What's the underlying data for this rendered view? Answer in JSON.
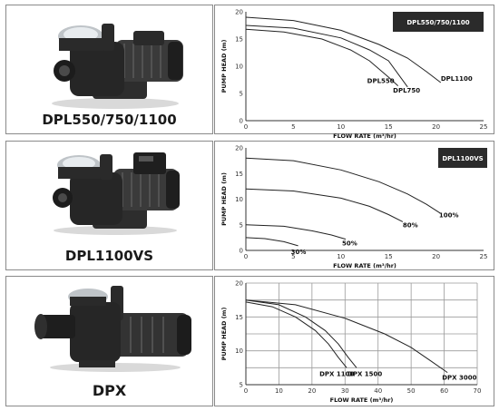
{
  "products": [
    {
      "name": "DPL550/750/1100",
      "image": "pump-dpl-icon"
    },
    {
      "name": "DPL1100VS",
      "image": "pump-dpl-vs-icon"
    },
    {
      "name": "DPX",
      "image": "pump-dpx-icon"
    }
  ],
  "chart_data": [
    {
      "type": "line",
      "badge": "DPL550/750/1100",
      "xlabel": "FLOW RATE (m³/hr)",
      "ylabel": "PUMP HEAD (m)",
      "xlim": [
        0,
        25
      ],
      "ylim": [
        0,
        20
      ],
      "xticks": [
        0,
        5,
        10,
        15,
        20,
        25
      ],
      "yticks": [
        0,
        5,
        10,
        15,
        20
      ],
      "grid": false,
      "series": [
        {
          "name": "DPL550",
          "x": [
            0,
            4,
            8,
            11,
            13,
            15,
            16
          ],
          "y": [
            16.8,
            16.3,
            15.0,
            13.0,
            11.0,
            8.0,
            6.4
          ]
        },
        {
          "name": "DPL750",
          "x": [
            0,
            5,
            10,
            13,
            15,
            17
          ],
          "y": [
            17.5,
            17.0,
            15.2,
            13.0,
            11.0,
            6.2
          ]
        },
        {
          "name": "DPL1100",
          "x": [
            0,
            5,
            10,
            14,
            17,
            19,
            20.5
          ],
          "y": [
            19.0,
            18.4,
            16.6,
            14.0,
            11.5,
            9.0,
            7.0
          ]
        }
      ]
    },
    {
      "type": "line",
      "badge": "DPL1100VS",
      "xlabel": "FLOW RATE (m³/hr)",
      "ylabel": "PUMP HEAD (m)",
      "xlim": [
        0,
        25
      ],
      "ylim": [
        0,
        20
      ],
      "xticks": [
        0,
        5,
        10,
        15,
        20,
        25
      ],
      "yticks": [
        0,
        5,
        10,
        15,
        20
      ],
      "grid": false,
      "series": [
        {
          "name": "100%",
          "x": [
            0,
            5,
            10,
            14,
            17,
            19,
            20.5
          ],
          "y": [
            18.0,
            17.5,
            15.7,
            13.4,
            11.0,
            9.0,
            7.2
          ]
        },
        {
          "name": "80%",
          "x": [
            0,
            5,
            10,
            13,
            15,
            16.5
          ],
          "y": [
            12.0,
            11.6,
            10.2,
            8.6,
            7.0,
            5.6
          ]
        },
        {
          "name": "50%",
          "x": [
            0,
            4,
            7,
            9,
            10.5
          ],
          "y": [
            5.0,
            4.7,
            3.8,
            3.0,
            2.2
          ]
        },
        {
          "name": "30%",
          "x": [
            0,
            2,
            4,
            5.5
          ],
          "y": [
            2.5,
            2.3,
            1.7,
            0.9
          ]
        }
      ]
    },
    {
      "type": "line",
      "badge": "",
      "xlabel": "FLOW RATE (m³/hr)",
      "ylabel": "PUMP HEAD (m)",
      "xlim": [
        0,
        70
      ],
      "ylim": [
        5,
        20
      ],
      "xticks": [
        0,
        10,
        20,
        30,
        40,
        50,
        60,
        70
      ],
      "yticks": [
        5,
        7.5,
        10,
        12.5,
        15,
        17.5,
        20
      ],
      "ytick_labels": [
        "5",
        "",
        "10",
        "",
        "15",
        "",
        "20"
      ],
      "grid": true,
      "series": [
        {
          "name": "DPX 1100",
          "x": [
            0,
            8,
            15,
            21,
            25,
            28,
            30.5
          ],
          "y": [
            17.2,
            16.5,
            15.0,
            13.0,
            11.0,
            9.0,
            7.5
          ]
        },
        {
          "name": "DPX 1500",
          "x": [
            0,
            10,
            18,
            24,
            28,
            31,
            33.5
          ],
          "y": [
            17.5,
            16.8,
            15.0,
            13.0,
            11.0,
            9.0,
            7.5
          ]
        },
        {
          "name": "DPX 3000",
          "x": [
            0,
            15,
            30,
            42,
            50,
            56,
            61
          ],
          "y": [
            17.5,
            16.8,
            14.8,
            12.5,
            10.5,
            8.5,
            6.8
          ]
        }
      ]
    }
  ]
}
